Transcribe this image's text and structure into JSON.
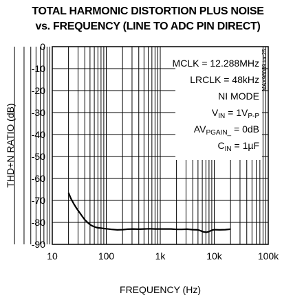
{
  "chart_data": {
    "type": "line",
    "title": "TOTAL HARMONIC DISTORTION PLUS NOISE",
    "subtitle": "vs. FREQUENCY (LINE TO ADC PIN DIRECT)",
    "xlabel": "FREQUENCY (Hz)",
    "ylabel": "THD+N RATIO (dB)",
    "x_scale": "log",
    "xlim": [
      10,
      100000
    ],
    "ylim": [
      -90,
      0
    ],
    "x_ticks": [
      10,
      100,
      1000,
      10000,
      100000
    ],
    "x_tick_labels": [
      "10",
      "100",
      "1k",
      "10k",
      "100k"
    ],
    "y_ticks": [
      0,
      -10,
      -20,
      -30,
      -40,
      -50,
      -60,
      -70,
      -80,
      -90
    ],
    "y_tick_labels": [
      "0",
      "-10",
      "-20",
      "-30",
      "-40",
      "-50",
      "-60",
      "-70",
      "-80",
      "-90"
    ],
    "grid": true,
    "chart_code": "MAX98089 toc25",
    "annotations": [
      {
        "id": "mclk",
        "text": "MCLK = 12.288MHz"
      },
      {
        "id": "lrclk",
        "text": "LRCLK = 48kHz"
      },
      {
        "id": "mode",
        "text": "NI MODE"
      },
      {
        "id": "vin",
        "parts": [
          "V",
          "IN",
          " = 1V",
          "P-P"
        ]
      },
      {
        "id": "gain",
        "parts": [
          "AV",
          "PGAIN_",
          " = 0dB"
        ]
      },
      {
        "id": "cin",
        "parts": [
          "C",
          "IN",
          " = 1µF"
        ]
      }
    ],
    "series": [
      {
        "color": "#000000",
        "x": [
          20,
          22,
          25,
          28,
          32,
          36,
          40,
          45,
          50,
          56,
          63,
          71,
          80,
          90,
          100,
          125,
          160,
          200,
          250,
          315,
          400,
          500,
          630,
          800,
          1000,
          1250,
          1600,
          2000,
          2500,
          3150,
          4000,
          5000,
          5600,
          6300,
          7100,
          8000,
          9000,
          10000,
          12500,
          16000,
          20000
        ],
        "y": [
          -66.5,
          -69.0,
          -71.5,
          -73.5,
          -75.5,
          -77.3,
          -78.8,
          -80.0,
          -81.0,
          -81.7,
          -82.2,
          -82.5,
          -82.6,
          -82.8,
          -82.9,
          -83.2,
          -83.4,
          -83.3,
          -83.1,
          -83.0,
          -83.1,
          -83.0,
          -82.9,
          -83.0,
          -83.0,
          -83.0,
          -83.0,
          -83.2,
          -83.2,
          -83.1,
          -83.3,
          -83.4,
          -83.8,
          -84.3,
          -84.5,
          -84.2,
          -83.6,
          -83.3,
          -83.4,
          -83.3,
          -83.1
        ]
      }
    ]
  }
}
